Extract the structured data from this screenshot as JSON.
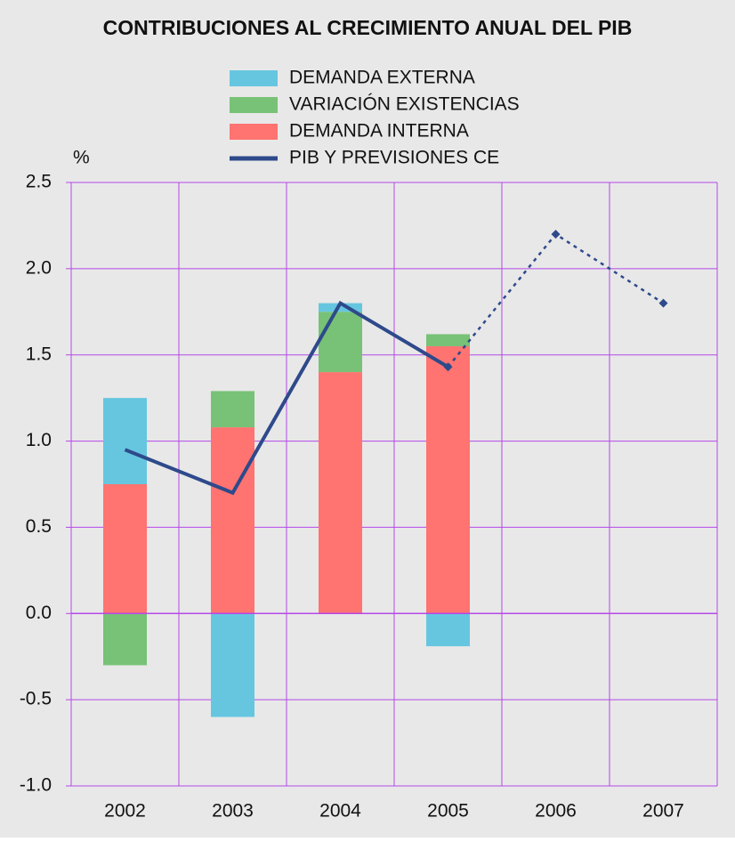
{
  "chart_data": {
    "type": "bar",
    "title": "CONTRIBUCIONES AL CRECIMIENTO ANUAL DEL PIB",
    "y_label": "%",
    "categories": [
      "2002",
      "2003",
      "2004",
      "2005",
      "2006",
      "2007"
    ],
    "series": [
      {
        "name": "DEMANDA EXTERNA",
        "color": "#66c6e0",
        "values": [
          0.5,
          -0.6,
          0.05,
          -0.19,
          null,
          null
        ]
      },
      {
        "name": "VARIACIÓN EXISTENCIAS",
        "color": "#77c276",
        "values": [
          -0.3,
          0.21,
          0.35,
          0.07,
          null,
          null
        ]
      },
      {
        "name": "DEMANDA INTERNA",
        "color": "#ff7370",
        "values": [
          0.75,
          1.08,
          1.4,
          1.55,
          null,
          null
        ]
      },
      {
        "name": "PIB Y PREVISIONES CE",
        "type": "line",
        "color": "#2e4a8b",
        "values": [
          0.95,
          0.7,
          1.8,
          1.43,
          2.2,
          1.8
        ],
        "dashed_from": "2005"
      }
    ],
    "ylim": [
      -1.0,
      2.5
    ],
    "yticks": [
      2.5,
      {
        "value": 2.0,
        "label": "2.0"
      },
      1.5,
      {
        "value": 1.0,
        "label": "1.0"
      },
      0.5,
      {
        "value": 0.0,
        "label": "0.0"
      },
      -0.5,
      {
        "value": -1.0,
        "label": "-1.0"
      }
    ],
    "grid": true,
    "grid_color": "#b548e8",
    "background": "#e8e8e8"
  }
}
